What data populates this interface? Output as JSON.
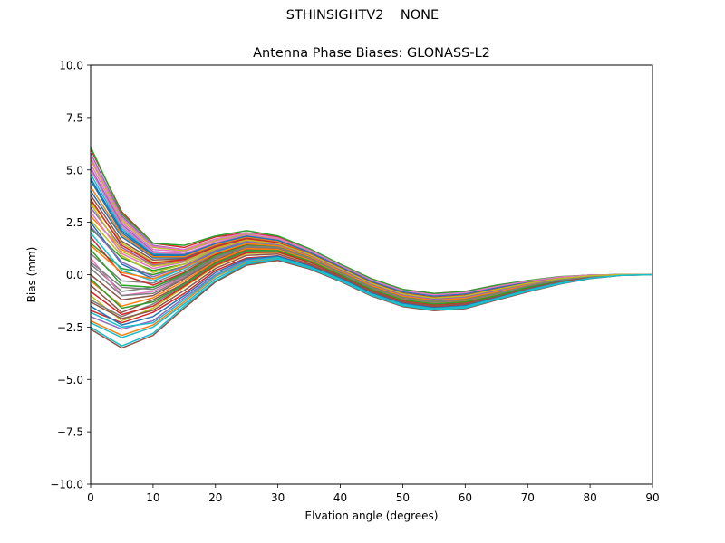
{
  "figure": {
    "suptitle": "STHINSIGHTV2    NONE"
  },
  "chart_data": {
    "type": "line",
    "title": "Antenna Phase Biases: GLONASS-L2",
    "xlabel": "Elvation angle (degrees)",
    "ylabel": "Bias (mm)",
    "xlim": [
      0,
      90
    ],
    "ylim": [
      -10,
      10
    ],
    "xticks": [
      0,
      10,
      20,
      30,
      40,
      50,
      60,
      70,
      80,
      90
    ],
    "yticks": [
      -10.0,
      -7.5,
      -5.0,
      -2.5,
      0.0,
      2.5,
      5.0,
      7.5,
      10.0
    ],
    "ytick_labels": [
      "−10.0",
      "−7.5",
      "−5.0",
      "−2.5",
      "0.0",
      "2.5",
      "5.0",
      "7.5",
      "10.0"
    ],
    "grid": false,
    "legend": "none",
    "palette": [
      "#1f77b4",
      "#ff7f0e",
      "#2ca02c",
      "#d62728",
      "#9467bd",
      "#8c564b",
      "#e377c2",
      "#7f7f7f",
      "#bcbd22",
      "#17becf"
    ],
    "x": [
      0,
      5,
      10,
      15,
      20,
      25,
      30,
      35,
      40,
      45,
      50,
      55,
      60,
      65,
      70,
      75,
      80,
      85,
      90
    ],
    "series": [
      {
        "values": [
          4.5,
          2.0,
          0.9,
          0.9,
          1.4,
          1.8,
          1.6,
          1.1,
          0.4,
          -0.3,
          -0.8,
          -1.0,
          -0.9,
          -0.6,
          -0.35,
          -0.15,
          -0.03,
          0.0,
          0.0
        ]
      },
      {
        "values": [
          2.8,
          1.2,
          0.5,
          0.7,
          1.3,
          1.7,
          1.5,
          1.0,
          0.3,
          -0.4,
          -0.9,
          -1.1,
          -1.0,
          -0.7,
          -0.4,
          -0.18,
          -0.05,
          0.0,
          0.0
        ]
      },
      {
        "values": [
          1.5,
          0.3,
          0.0,
          0.4,
          1.1,
          1.5,
          1.4,
          0.9,
          0.2,
          -0.5,
          -1.0,
          -1.2,
          -1.1,
          -0.8,
          -0.45,
          -0.2,
          -0.06,
          0.0,
          0.0
        ]
      },
      {
        "values": [
          6.0,
          3.0,
          1.5,
          1.3,
          1.8,
          2.0,
          1.8,
          1.2,
          0.5,
          -0.2,
          -0.7,
          -0.9,
          -0.8,
          -0.5,
          -0.3,
          -0.12,
          -0.02,
          0.0,
          0.0
        ]
      },
      {
        "values": [
          5.8,
          2.8,
          1.4,
          1.2,
          1.7,
          2.0,
          1.7,
          1.2,
          0.45,
          -0.25,
          -0.75,
          -0.95,
          -0.85,
          -0.55,
          -0.3,
          -0.12,
          -0.02,
          0.0,
          0.0
        ]
      },
      {
        "values": [
          -0.5,
          -1.8,
          -1.2,
          -0.4,
          0.6,
          1.2,
          1.2,
          0.7,
          0.0,
          -0.7,
          -1.2,
          -1.4,
          -1.3,
          -1.0,
          -0.6,
          -0.3,
          -0.1,
          0.0,
          0.0
        ]
      },
      {
        "values": [
          5.3,
          2.5,
          1.2,
          1.1,
          1.6,
          1.9,
          1.7,
          1.1,
          0.4,
          -0.3,
          -0.8,
          -1.0,
          -0.9,
          -0.6,
          -0.35,
          -0.15,
          -0.03,
          0.0,
          0.0
        ]
      },
      {
        "values": [
          0.5,
          -0.8,
          -0.6,
          0.0,
          0.9,
          1.4,
          1.3,
          0.8,
          0.1,
          -0.6,
          -1.1,
          -1.3,
          -1.2,
          -0.9,
          -0.5,
          -0.25,
          -0.08,
          0.0,
          0.0
        ]
      },
      {
        "values": [
          3.5,
          1.5,
          0.6,
          0.7,
          1.3,
          1.7,
          1.5,
          1.0,
          0.3,
          -0.4,
          -0.9,
          -1.1,
          -1.0,
          -0.7,
          -0.4,
          -0.18,
          -0.05,
          0.0,
          0.0
        ]
      },
      {
        "values": [
          -2.5,
          -3.4,
          -2.8,
          -1.5,
          -0.3,
          0.5,
          0.7,
          0.3,
          -0.3,
          -1.0,
          -1.5,
          -1.7,
          -1.6,
          -1.2,
          -0.8,
          -0.45,
          -0.18,
          -0.03,
          0.0
        ]
      },
      {
        "values": [
          4.0,
          1.8,
          0.8,
          0.8,
          1.4,
          1.8,
          1.6,
          1.0,
          0.35,
          -0.35,
          -0.85,
          -1.05,
          -0.95,
          -0.65,
          -0.38,
          -0.17,
          -0.04,
          0.0,
          0.0
        ]
      },
      {
        "values": [
          -2.2,
          -2.9,
          -2.4,
          -1.3,
          -0.1,
          0.6,
          0.8,
          0.35,
          -0.25,
          -0.95,
          -1.45,
          -1.65,
          -1.55,
          -1.15,
          -0.75,
          -0.42,
          -0.16,
          -0.03,
          0.0
        ]
      },
      {
        "values": [
          2.2,
          0.8,
          0.2,
          0.5,
          1.2,
          1.6,
          1.45,
          0.95,
          0.25,
          -0.45,
          -0.95,
          -1.15,
          -1.05,
          -0.75,
          -0.42,
          -0.2,
          -0.06,
          0.0,
          0.0
        ]
      },
      {
        "values": [
          -1.7,
          -2.3,
          -1.8,
          -0.9,
          0.2,
          0.8,
          0.9,
          0.45,
          -0.15,
          -0.85,
          -1.35,
          -1.55,
          -1.45,
          -1.1,
          -0.7,
          -0.38,
          -0.14,
          -0.02,
          0.0
        ]
      },
      {
        "values": [
          5.1,
          2.4,
          1.1,
          1.0,
          1.5,
          1.9,
          1.7,
          1.1,
          0.4,
          -0.3,
          -0.8,
          -1.0,
          -0.9,
          -0.6,
          -0.35,
          -0.15,
          -0.03,
          0.0,
          0.0
        ]
      },
      {
        "values": [
          0.0,
          -1.2,
          -1.0,
          -0.2,
          0.7,
          1.3,
          1.25,
          0.75,
          0.05,
          -0.65,
          -1.15,
          -1.35,
          -1.25,
          -0.95,
          -0.55,
          -0.28,
          -0.09,
          0.0,
          0.0
        ]
      },
      {
        "values": [
          3.0,
          1.0,
          0.3,
          0.6,
          1.25,
          1.65,
          1.5,
          1.0,
          0.3,
          -0.4,
          -0.9,
          -1.1,
          -1.0,
          -0.7,
          -0.4,
          -0.18,
          -0.05,
          0.0,
          0.0
        ]
      },
      {
        "values": [
          1.0,
          -0.3,
          -0.4,
          0.2,
          1.0,
          1.45,
          1.35,
          0.85,
          0.15,
          -0.55,
          -1.05,
          -1.25,
          -1.15,
          -0.85,
          -0.5,
          -0.24,
          -0.07,
          0.0,
          0.0
        ]
      },
      {
        "values": [
          -1.0,
          -2.2,
          -1.6,
          -0.6,
          0.4,
          1.0,
          1.05,
          0.6,
          -0.05,
          -0.75,
          -1.25,
          -1.45,
          -1.35,
          -1.05,
          -0.65,
          -0.33,
          -0.12,
          -0.01,
          0.0
        ]
      },
      {
        "values": [
          4.8,
          2.2,
          1.0,
          1.0,
          1.5,
          1.85,
          1.65,
          1.1,
          0.4,
          -0.3,
          -0.8,
          -1.0,
          -0.9,
          -0.6,
          -0.35,
          -0.15,
          -0.03,
          0.0,
          0.0
        ]
      },
      {
        "values": [
          2.5,
          0.5,
          -0.2,
          0.3,
          1.1,
          1.55,
          1.45,
          0.95,
          0.25,
          -0.45,
          -0.95,
          -1.15,
          -1.05,
          -0.75,
          -0.42,
          -0.2,
          -0.06,
          0.0,
          0.0
        ]
      },
      {
        "values": [
          -0.3,
          -1.5,
          -1.1,
          -0.3,
          0.65,
          1.25,
          1.2,
          0.72,
          0.02,
          -0.68,
          -1.18,
          -1.38,
          -1.28,
          -0.98,
          -0.58,
          -0.29,
          -0.1,
          0.0,
          0.0
        ]
      },
      {
        "values": [
          6.1,
          2.9,
          1.5,
          1.4,
          1.85,
          2.1,
          1.85,
          1.25,
          0.5,
          -0.2,
          -0.7,
          -0.9,
          -0.8,
          -0.5,
          -0.28,
          -0.1,
          -0.02,
          0.0,
          0.0
        ]
      },
      {
        "values": [
          1.8,
          0.0,
          -0.5,
          0.1,
          0.95,
          1.45,
          1.35,
          0.85,
          0.15,
          -0.55,
          -1.05,
          -1.25,
          -1.15,
          -0.85,
          -0.5,
          -0.24,
          -0.07,
          0.0,
          0.0
        ]
      },
      {
        "values": [
          -2.0,
          -2.6,
          -2.2,
          -1.1,
          0.0,
          0.7,
          0.85,
          0.4,
          -0.2,
          -0.9,
          -1.4,
          -1.6,
          -1.5,
          -1.12,
          -0.72,
          -0.4,
          -0.15,
          -0.02,
          0.0
        ]
      },
      {
        "values": [
          3.8,
          1.6,
          0.7,
          0.75,
          1.35,
          1.75,
          1.55,
          1.02,
          0.32,
          -0.38,
          -0.88,
          -1.08,
          -0.98,
          -0.68,
          -0.39,
          -0.17,
          -0.04,
          0.0,
          0.0
        ]
      },
      {
        "values": [
          0.8,
          -1.0,
          -0.8,
          -0.1,
          0.85,
          1.35,
          1.3,
          0.8,
          0.1,
          -0.6,
          -1.1,
          -1.3,
          -1.2,
          -0.9,
          -0.52,
          -0.26,
          -0.08,
          0.0,
          0.0
        ]
      },
      {
        "values": [
          -1.2,
          -2.0,
          -1.4,
          -0.5,
          0.5,
          1.1,
          1.1,
          0.62,
          -0.02,
          -0.72,
          -1.22,
          -1.42,
          -1.32,
          -1.02,
          -0.62,
          -0.31,
          -0.11,
          0.0,
          0.0
        ]
      },
      {
        "values": [
          5.5,
          2.6,
          1.3,
          1.15,
          1.65,
          1.95,
          1.72,
          1.15,
          0.42,
          -0.28,
          -0.78,
          -0.98,
          -0.88,
          -0.58,
          -0.32,
          -0.13,
          -0.03,
          0.0,
          0.0
        ]
      },
      {
        "values": [
          2.0,
          0.2,
          -0.3,
          0.3,
          1.05,
          1.5,
          1.4,
          0.9,
          0.2,
          -0.5,
          -1.0,
          -1.2,
          -1.1,
          -0.8,
          -0.46,
          -0.22,
          -0.06,
          0.0,
          0.0
        ]
      },
      {
        "values": [
          -1.5,
          -2.4,
          -2.0,
          -1.0,
          0.1,
          0.75,
          0.88,
          0.42,
          -0.18,
          -0.88,
          -1.38,
          -1.58,
          -1.48,
          -1.1,
          -0.7,
          -0.37,
          -0.14,
          -0.02,
          0.0
        ]
      },
      {
        "values": [
          4.2,
          1.9,
          0.85,
          0.85,
          1.42,
          1.8,
          1.6,
          1.05,
          0.36,
          -0.34,
          -0.84,
          -1.04,
          -0.94,
          -0.64,
          -0.37,
          -0.16,
          -0.04,
          0.0,
          0.0
        ]
      },
      {
        "values": [
          1.2,
          -0.5,
          -0.6,
          0.05,
          0.9,
          1.4,
          1.32,
          0.82,
          0.12,
          -0.58,
          -1.08,
          -1.28,
          -1.18,
          -0.88,
          -0.51,
          -0.25,
          -0.08,
          0.0,
          0.0
        ]
      },
      {
        "values": [
          -0.8,
          -1.9,
          -1.5,
          -0.55,
          0.45,
          1.05,
          1.08,
          0.6,
          -0.04,
          -0.74,
          -1.24,
          -1.44,
          -1.34,
          -1.04,
          -0.64,
          -0.32,
          -0.11,
          -0.01,
          0.0
        ]
      },
      {
        "values": [
          3.2,
          1.3,
          0.45,
          0.65,
          1.28,
          1.68,
          1.5,
          1.0,
          0.3,
          -0.4,
          -0.9,
          -1.1,
          -1.0,
          -0.7,
          -0.4,
          -0.18,
          -0.05,
          0.0,
          0.0
        ]
      },
      {
        "values": [
          -2.6,
          -3.5,
          -2.9,
          -1.6,
          -0.35,
          0.45,
          0.68,
          0.28,
          -0.32,
          -1.02,
          -1.52,
          -1.72,
          -1.62,
          -1.22,
          -0.82,
          -0.46,
          -0.18,
          -0.03,
          0.0
        ]
      },
      {
        "values": [
          5.0,
          2.3,
          1.05,
          1.0,
          1.52,
          1.88,
          1.68,
          1.1,
          0.4,
          -0.3,
          -0.8,
          -1.0,
          -0.9,
          -0.6,
          -0.35,
          -0.15,
          -0.03,
          0.0,
          0.0
        ]
      },
      {
        "values": [
          0.3,
          -1.0,
          -0.9,
          -0.15,
          0.78,
          1.32,
          1.28,
          0.78,
          0.08,
          -0.62,
          -1.12,
          -1.32,
          -1.22,
          -0.92,
          -0.54,
          -0.27,
          -0.09,
          0.0,
          0.0
        ]
      },
      {
        "values": [
          2.6,
          0.9,
          0.1,
          0.5,
          1.18,
          1.6,
          1.45,
          0.95,
          0.25,
          -0.45,
          -0.95,
          -1.15,
          -1.05,
          -0.75,
          -0.42,
          -0.2,
          -0.06,
          0.0,
          0.0
        ]
      },
      {
        "values": [
          -1.8,
          -2.5,
          -2.3,
          -1.2,
          -0.05,
          0.65,
          0.82,
          0.38,
          -0.22,
          -0.92,
          -1.42,
          -1.62,
          -1.52,
          -1.14,
          -0.74,
          -0.41,
          -0.15,
          -0.02,
          0.0
        ]
      },
      {
        "values": [
          4.6,
          2.1,
          0.95,
          0.95,
          1.48,
          1.84,
          1.64,
          1.08,
          0.38,
          -0.32,
          -0.82,
          -1.02,
          -0.92,
          -0.62,
          -0.36,
          -0.15,
          -0.03,
          0.0,
          0.0
        ]
      },
      {
        "values": [
          1.4,
          0.1,
          -0.2,
          0.35,
          1.02,
          1.48,
          1.38,
          0.88,
          0.18,
          -0.52,
          -1.02,
          -1.22,
          -1.12,
          -0.82,
          -0.48,
          -0.23,
          -0.07,
          0.0,
          0.0
        ]
      },
      {
        "values": [
          -0.2,
          -1.6,
          -1.3,
          -0.45,
          0.55,
          1.15,
          1.15,
          0.66,
          0.0,
          -0.7,
          -1.2,
          -1.4,
          -1.3,
          -1.0,
          -0.6,
          -0.3,
          -0.1,
          0.0,
          0.0
        ]
      },
      {
        "values": [
          3.6,
          1.4,
          0.55,
          0.72,
          1.32,
          1.72,
          1.52,
          1.0,
          0.31,
          -0.39,
          -0.89,
          -1.09,
          -0.99,
          -0.69,
          -0.4,
          -0.18,
          -0.05,
          0.0,
          0.0
        ]
      },
      {
        "values": [
          2.3,
          0.6,
          -0.1,
          0.4,
          1.15,
          1.58,
          1.44,
          0.94,
          0.24,
          -0.46,
          -0.96,
          -1.16,
          -1.06,
          -0.76,
          -0.43,
          -0.21,
          -0.06,
          0.0,
          0.0
        ]
      },
      {
        "values": [
          -1.3,
          -2.1,
          -1.7,
          -0.75,
          0.3,
          0.92,
          0.98,
          0.52,
          -0.1,
          -0.8,
          -1.3,
          -1.5,
          -1.4,
          -1.06,
          -0.66,
          -0.34,
          -0.12,
          -0.01,
          0.0
        ]
      },
      {
        "values": [
          5.6,
          2.7,
          1.35,
          1.2,
          1.7,
          1.98,
          1.75,
          1.18,
          0.44,
          -0.26,
          -0.76,
          -0.96,
          -0.86,
          -0.56,
          -0.31,
          -0.12,
          -0.02,
          0.0,
          0.0
        ]
      },
      {
        "values": [
          0.6,
          -0.6,
          -0.7,
          -0.05,
          0.82,
          1.36,
          1.3,
          0.8,
          0.1,
          -0.6,
          -1.1,
          -1.3,
          -1.2,
          -0.9,
          -0.53,
          -0.26,
          -0.08,
          0.0,
          0.0
        ]
      },
      {
        "values": [
          3.4,
          1.1,
          0.4,
          0.62,
          1.26,
          1.66,
          1.48,
          0.98,
          0.29,
          -0.41,
          -0.91,
          -1.11,
          -1.01,
          -0.71,
          -0.41,
          -0.19,
          -0.05,
          0.0,
          0.0
        ]
      },
      {
        "values": [
          -2.3,
          -3.0,
          -2.5,
          -1.4,
          -0.2,
          0.55,
          0.75,
          0.32,
          -0.28,
          -0.98,
          -1.48,
          -1.68,
          -1.58,
          -1.18,
          -0.78,
          -0.44,
          -0.17,
          -0.03,
          0.0
        ]
      }
    ]
  }
}
